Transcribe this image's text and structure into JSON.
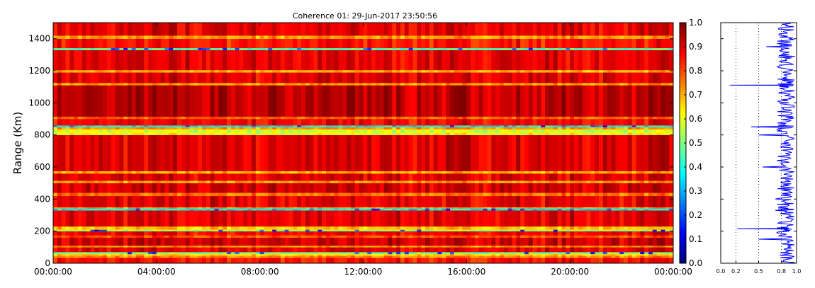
{
  "chart_data": [
    {
      "type": "heatmap",
      "title": "Coherence 01: 29-Jun-2017 23:50:56",
      "xlabel": "",
      "ylabel": "Range (Km)",
      "xticks": [
        "00:00:00",
        "04:00:00",
        "08:00:00",
        "12:00:00",
        "16:00:00",
        "20:00:00",
        "00:00:00"
      ],
      "yticks": [
        0,
        200,
        400,
        600,
        800,
        1000,
        1200,
        1400
      ],
      "ylim": [
        0,
        1500
      ],
      "x_hours_range": [
        0,
        24
      ],
      "colorscale": "jet",
      "zlim": [
        0.0,
        1.0
      ],
      "colorbar_ticks": [
        "0.0",
        "0.1",
        "0.2",
        "0.3",
        "0.4",
        "0.5",
        "0.6",
        "0.7",
        "0.8",
        "0.9",
        "1.0"
      ],
      "rows": [
        {
          "from": 0,
          "to": 35,
          "value": 0.86
        },
        {
          "from": 35,
          "to": 48,
          "value": 0.74
        },
        {
          "from": 48,
          "to": 58,
          "value": 0.66
        },
        {
          "from": 58,
          "to": 70,
          "value": 0.5
        },
        {
          "from": 70,
          "to": 100,
          "value": 0.9
        },
        {
          "from": 100,
          "to": 110,
          "value": 0.72
        },
        {
          "from": 110,
          "to": 160,
          "value": 0.92
        },
        {
          "from": 160,
          "to": 175,
          "value": 0.8
        },
        {
          "from": 175,
          "to": 200,
          "value": 0.88
        },
        {
          "from": 200,
          "to": 210,
          "value": 0.52
        },
        {
          "from": 210,
          "to": 230,
          "value": 0.68
        },
        {
          "from": 230,
          "to": 330,
          "value": 0.9
        },
        {
          "from": 330,
          "to": 342,
          "value": 0.36
        },
        {
          "from": 342,
          "to": 350,
          "value": 0.72
        },
        {
          "from": 350,
          "to": 420,
          "value": 0.9
        },
        {
          "from": 420,
          "to": 440,
          "value": 0.76
        },
        {
          "from": 440,
          "to": 500,
          "value": 0.92
        },
        {
          "from": 500,
          "to": 515,
          "value": 0.72
        },
        {
          "from": 515,
          "to": 560,
          "value": 0.9
        },
        {
          "from": 560,
          "to": 575,
          "value": 0.7
        },
        {
          "from": 575,
          "to": 800,
          "value": 0.91
        },
        {
          "from": 800,
          "to": 815,
          "value": 0.62
        },
        {
          "from": 815,
          "to": 835,
          "value": 0.58
        },
        {
          "from": 835,
          "to": 850,
          "value": 0.72
        },
        {
          "from": 850,
          "to": 860,
          "value": 0.35
        },
        {
          "from": 860,
          "to": 900,
          "value": 0.88
        },
        {
          "from": 900,
          "to": 915,
          "value": 0.78
        },
        {
          "from": 915,
          "to": 1110,
          "value": 0.94
        },
        {
          "from": 1110,
          "to": 1125,
          "value": 0.72
        },
        {
          "from": 1125,
          "to": 1190,
          "value": 0.9
        },
        {
          "from": 1190,
          "to": 1205,
          "value": 0.7
        },
        {
          "from": 1205,
          "to": 1330,
          "value": 0.9
        },
        {
          "from": 1330,
          "to": 1342,
          "value": 0.45
        },
        {
          "from": 1342,
          "to": 1400,
          "value": 0.86
        },
        {
          "from": 1400,
          "to": 1420,
          "value": 0.72
        },
        {
          "from": 1420,
          "to": 1500,
          "value": 0.9
        }
      ]
    },
    {
      "type": "line",
      "xticks": [
        "0.0",
        "0.2",
        "0.5",
        "0.8",
        "1.0"
      ],
      "xlim": [
        0.0,
        1.0
      ],
      "ylim": [
        0,
        1500
      ],
      "series": [
        {
          "color": "#0000ff",
          "y": [
            0,
            50,
            100,
            150,
            200,
            215,
            230,
            280,
            330,
            360,
            400,
            450,
            500,
            550,
            600,
            650,
            700,
            750,
            800,
            850,
            900,
            950,
            1000,
            1050,
            1100,
            1110,
            1125,
            1150,
            1200,
            1250,
            1300,
            1350,
            1400,
            1450,
            1500
          ],
          "x": [
            0.9,
            0.78,
            0.88,
            0.5,
            0.9,
            0.22,
            0.88,
            0.9,
            0.72,
            0.9,
            0.72,
            0.9,
            0.8,
            0.9,
            0.55,
            0.9,
            0.88,
            0.9,
            0.5,
            0.4,
            0.9,
            0.9,
            0.9,
            0.9,
            0.9,
            0.12,
            0.9,
            0.88,
            0.9,
            0.9,
            0.9,
            0.6,
            0.9,
            0.88,
            0.9
          ]
        }
      ],
      "reference_lines": [
        0.2,
        0.5,
        0.8
      ]
    }
  ]
}
